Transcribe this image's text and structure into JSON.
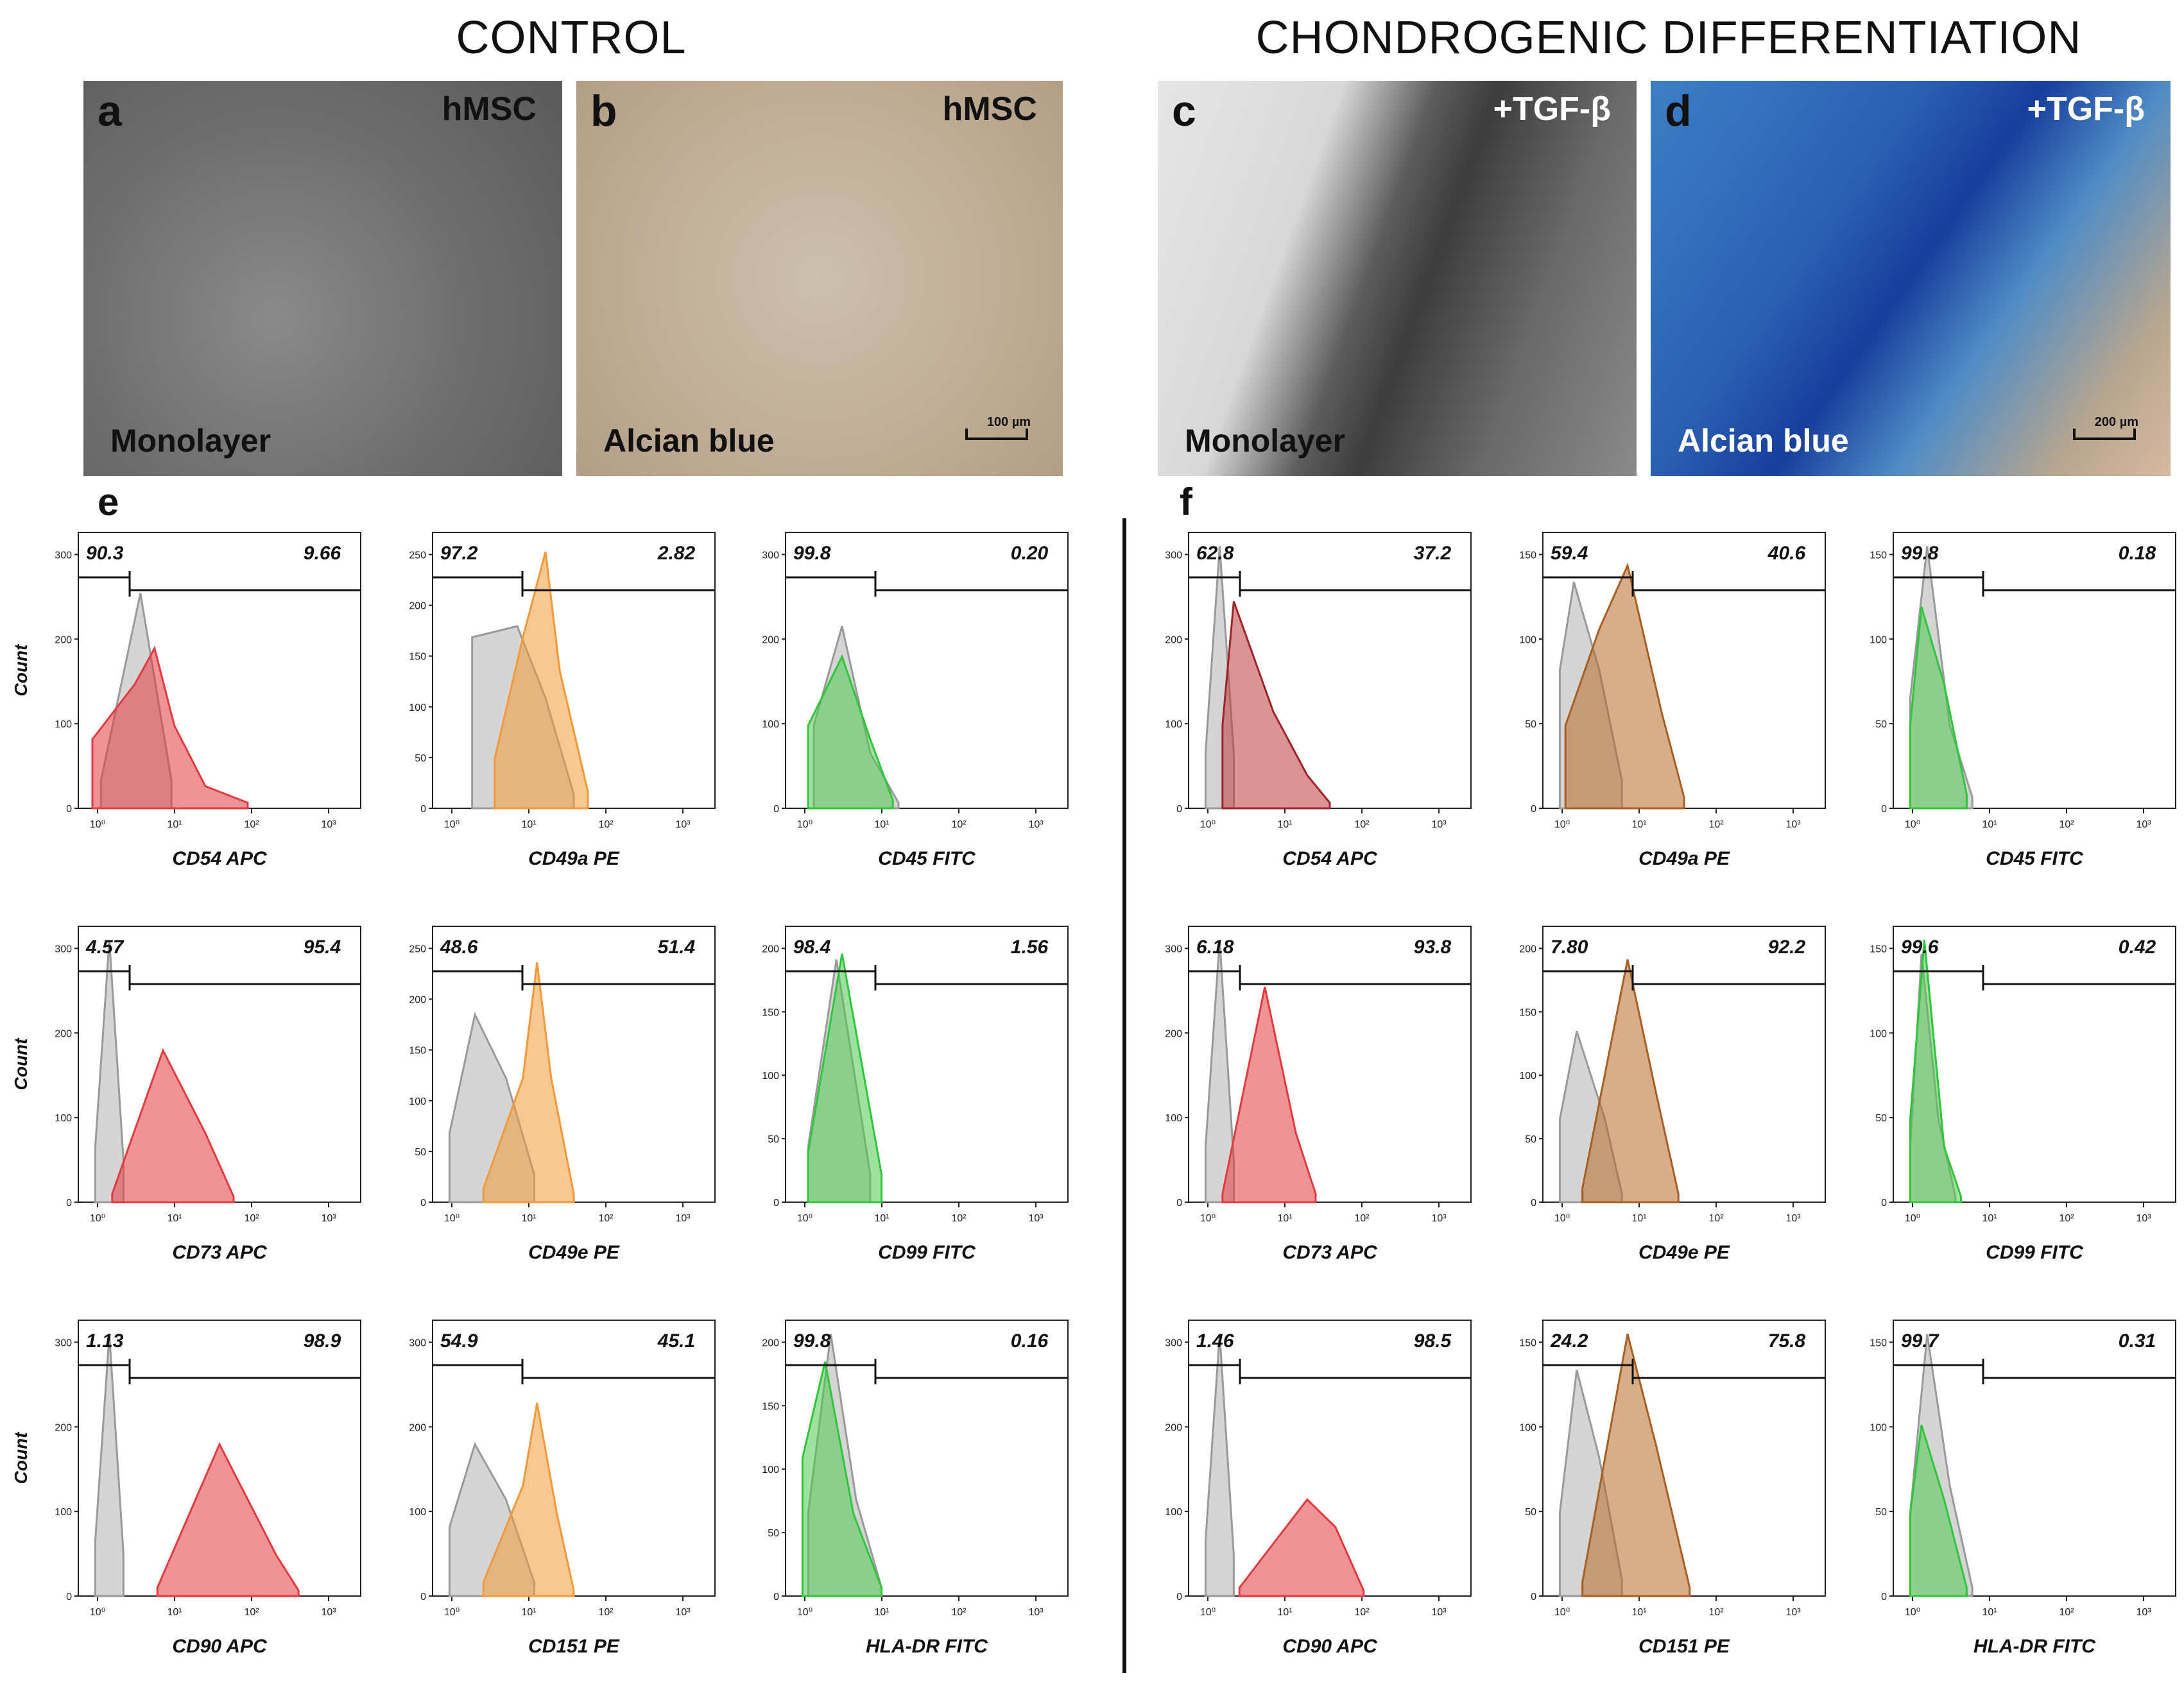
{
  "headings": {
    "control": "CONTROL",
    "chondro": "CHONDROGENIC DIFFERENTIATION"
  },
  "micrographs": [
    {
      "letter": "a",
      "tag": "hMSC",
      "caption": "Monolayer",
      "scale": ""
    },
    {
      "letter": "b",
      "tag": "hMSC",
      "caption": "Alcian blue",
      "scale": "100 µm"
    },
    {
      "letter": "c",
      "tag": "+TGF-β",
      "caption": "Monolayer",
      "scale": ""
    },
    {
      "letter": "d",
      "tag": "+TGF-β",
      "caption": "Alcian blue",
      "scale": "200 µm"
    }
  ],
  "flow_letters": {
    "left": "e",
    "right": "f"
  },
  "y_axis_label": "Count",
  "colors": {
    "red": "#e43a3f",
    "orange": "#f29a3a",
    "green": "#2ec63a",
    "brown": "#b8692a",
    "gray": "#9a9a9a"
  },
  "chart_data": [
    {
      "panel": "e",
      "marker": "CD54 APC",
      "neg": "90.3",
      "pos": "9.66",
      "ymax": 300,
      "color": "orange_red"
    },
    {
      "panel": "e",
      "marker": "CD49a PE",
      "neg": "97.2",
      "pos": "2.82",
      "ymax": 250
    },
    {
      "panel": "e",
      "marker": "CD45 FITC",
      "neg": "99.8",
      "pos": "0.20",
      "ymax": 300
    },
    {
      "panel": "f",
      "marker": "CD54 APC",
      "neg": "62.8",
      "pos": "37.2",
      "ymax": 300
    },
    {
      "panel": "f",
      "marker": "CD49a PE",
      "neg": "59.4",
      "pos": "40.6",
      "ymax": 150
    },
    {
      "panel": "f",
      "marker": "CD45 FITC",
      "neg": "99.8",
      "pos": "0.18",
      "ymax": 150
    },
    {
      "panel": "e",
      "marker": "CD73 APC",
      "neg": "4.57",
      "pos": "95.4",
      "ymax": 300
    },
    {
      "panel": "e",
      "marker": "CD49e PE",
      "neg": "48.6",
      "pos": "51.4",
      "ymax": 250
    },
    {
      "panel": "e",
      "marker": "CD99 FITC",
      "neg": "98.4",
      "pos": "1.56",
      "ymax": 200
    },
    {
      "panel": "f",
      "marker": "CD73 APC",
      "neg": "6.18",
      "pos": "93.8",
      "ymax": 300
    },
    {
      "panel": "f",
      "marker": "CD49e PE",
      "neg": "7.80",
      "pos": "92.2",
      "ymax": 200
    },
    {
      "panel": "f",
      "marker": "CD99 FITC",
      "neg": "99.6",
      "pos": "0.42",
      "ymax": 150
    },
    {
      "panel": "e",
      "marker": "CD90 APC",
      "neg": "1.13",
      "pos": "98.9",
      "ymax": 300
    },
    {
      "panel": "e",
      "marker": "CD151 PE",
      "neg": "54.9",
      "pos": "45.1",
      "ymax": 300
    },
    {
      "panel": "e",
      "marker": "HLA-DR FITC",
      "neg": "99.8",
      "pos": "0.16",
      "ymax": 200
    },
    {
      "panel": "f",
      "marker": "CD90 APC",
      "neg": "1.46",
      "pos": "98.5",
      "ymax": 300
    },
    {
      "panel": "f",
      "marker": "CD151 PE",
      "neg": "24.2",
      "pos": "75.8",
      "ymax": 150
    },
    {
      "panel": "f",
      "marker": "HLA-DR FITC",
      "neg": "99.7",
      "pos": "0.31",
      "ymax": 150
    }
  ],
  "curves": [
    {
      "gray": [
        [
          0.08,
          0.1
        ],
        [
          0.22,
          0.78
        ],
        [
          0.33,
          0.1
        ]
      ],
      "stain": [
        [
          0.05,
          0.25
        ],
        [
          0.2,
          0.45
        ],
        [
          0.27,
          0.58
        ],
        [
          0.34,
          0.3
        ],
        [
          0.45,
          0.08
        ],
        [
          0.6,
          0.02
        ]
      ],
      "c": "red"
    },
    {
      "gray": [
        [
          0.14,
          0.62
        ],
        [
          0.3,
          0.66
        ],
        [
          0.4,
          0.4
        ],
        [
          0.5,
          0.05
        ]
      ],
      "stain": [
        [
          0.22,
          0.18
        ],
        [
          0.32,
          0.62
        ],
        [
          0.4,
          0.93
        ],
        [
          0.45,
          0.5
        ],
        [
          0.55,
          0.06
        ]
      ],
      "c": "orange"
    },
    {
      "gray": [
        [
          0.1,
          0.3
        ],
        [
          0.2,
          0.66
        ],
        [
          0.3,
          0.2
        ],
        [
          0.4,
          0.02
        ]
      ],
      "stain": [
        [
          0.08,
          0.3
        ],
        [
          0.2,
          0.55
        ],
        [
          0.3,
          0.25
        ],
        [
          0.38,
          0.03
        ]
      ],
      "c": "green"
    },
    {
      "gray": [
        [
          0.06,
          0.2
        ],
        [
          0.11,
          0.95
        ],
        [
          0.16,
          0.2
        ]
      ],
      "stain": [
        [
          0.12,
          0.3
        ],
        [
          0.16,
          0.75
        ],
        [
          0.3,
          0.35
        ],
        [
          0.42,
          0.12
        ],
        [
          0.5,
          0.02
        ]
      ],
      "c": "darkred"
    },
    {
      "gray": [
        [
          0.06,
          0.5
        ],
        [
          0.11,
          0.82
        ],
        [
          0.2,
          0.5
        ],
        [
          0.28,
          0.1
        ]
      ],
      "stain": [
        [
          0.08,
          0.3
        ],
        [
          0.2,
          0.65
        ],
        [
          0.3,
          0.88
        ],
        [
          0.42,
          0.35
        ],
        [
          0.5,
          0.04
        ]
      ],
      "c": "brown"
    },
    {
      "gray": [
        [
          0.06,
          0.4
        ],
        [
          0.12,
          0.95
        ],
        [
          0.2,
          0.3
        ],
        [
          0.28,
          0.04
        ]
      ],
      "stain": [
        [
          0.06,
          0.3
        ],
        [
          0.1,
          0.73
        ],
        [
          0.18,
          0.45
        ],
        [
          0.26,
          0.05
        ]
      ],
      "c": "green"
    },
    {
      "gray": [
        [
          0.06,
          0.2
        ],
        [
          0.11,
          0.95
        ],
        [
          0.16,
          0.15
        ]
      ],
      "stain": [
        [
          0.12,
          0.03
        ],
        [
          0.3,
          0.55
        ],
        [
          0.45,
          0.25
        ],
        [
          0.55,
          0.02
        ]
      ],
      "c": "red"
    },
    {
      "gray": [
        [
          0.06,
          0.25
        ],
        [
          0.15,
          0.68
        ],
        [
          0.26,
          0.45
        ],
        [
          0.36,
          0.1
        ]
      ],
      "stain": [
        [
          0.18,
          0.05
        ],
        [
          0.32,
          0.45
        ],
        [
          0.37,
          0.87
        ],
        [
          0.42,
          0.45
        ],
        [
          0.5,
          0.03
        ]
      ],
      "c": "orange"
    },
    {
      "gray": [
        [
          0.08,
          0.2
        ],
        [
          0.18,
          0.88
        ],
        [
          0.3,
          0.1
        ]
      ],
      "stain": [
        [
          0.08,
          0.18
        ],
        [
          0.2,
          0.9
        ],
        [
          0.34,
          0.1
        ]
      ],
      "c": "green"
    },
    {
      "gray": [
        [
          0.06,
          0.2
        ],
        [
          0.11,
          0.95
        ],
        [
          0.16,
          0.15
        ]
      ],
      "stain": [
        [
          0.12,
          0.03
        ],
        [
          0.27,
          0.78
        ],
        [
          0.38,
          0.25
        ],
        [
          0.45,
          0.03
        ]
      ],
      "c": "red"
    },
    {
      "gray": [
        [
          0.06,
          0.3
        ],
        [
          0.12,
          0.62
        ],
        [
          0.22,
          0.3
        ],
        [
          0.28,
          0.03
        ]
      ],
      "stain": [
        [
          0.14,
          0.05
        ],
        [
          0.3,
          0.88
        ],
        [
          0.4,
          0.4
        ],
        [
          0.48,
          0.03
        ]
      ],
      "c": "brown"
    },
    {
      "gray": [
        [
          0.06,
          0.2
        ],
        [
          0.1,
          0.9
        ],
        [
          0.16,
          0.3
        ],
        [
          0.22,
          0.02
        ]
      ],
      "stain": [
        [
          0.06,
          0.3
        ],
        [
          0.11,
          0.95
        ],
        [
          0.18,
          0.2
        ],
        [
          0.24,
          0.02
        ]
      ],
      "c": "green"
    },
    {
      "gray": [
        [
          0.06,
          0.2
        ],
        [
          0.11,
          0.95
        ],
        [
          0.16,
          0.15
        ]
      ],
      "stain": [
        [
          0.28,
          0.03
        ],
        [
          0.5,
          0.55
        ],
        [
          0.7,
          0.15
        ],
        [
          0.78,
          0.02
        ]
      ],
      "c": "red"
    },
    {
      "gray": [
        [
          0.06,
          0.25
        ],
        [
          0.15,
          0.55
        ],
        [
          0.26,
          0.35
        ],
        [
          0.36,
          0.05
        ]
      ],
      "stain": [
        [
          0.18,
          0.05
        ],
        [
          0.32,
          0.4
        ],
        [
          0.37,
          0.7
        ],
        [
          0.44,
          0.3
        ],
        [
          0.5,
          0.02
        ]
      ],
      "c": "orange"
    },
    {
      "gray": [
        [
          0.08,
          0.3
        ],
        [
          0.16,
          0.95
        ],
        [
          0.25,
          0.35
        ],
        [
          0.34,
          0.03
        ]
      ],
      "stain": [
        [
          0.06,
          0.5
        ],
        [
          0.14,
          0.85
        ],
        [
          0.24,
          0.3
        ],
        [
          0.34,
          0.03
        ]
      ],
      "c": "green"
    },
    {
      "gray": [
        [
          0.06,
          0.2
        ],
        [
          0.11,
          0.95
        ],
        [
          0.16,
          0.15
        ]
      ],
      "stain": [
        [
          0.18,
          0.03
        ],
        [
          0.42,
          0.35
        ],
        [
          0.52,
          0.25
        ],
        [
          0.62,
          0.02
        ]
      ],
      "c": "red"
    },
    {
      "gray": [
        [
          0.06,
          0.3
        ],
        [
          0.12,
          0.82
        ],
        [
          0.2,
          0.5
        ],
        [
          0.28,
          0.06
        ]
      ],
      "stain": [
        [
          0.14,
          0.05
        ],
        [
          0.3,
          0.95
        ],
        [
          0.4,
          0.55
        ],
        [
          0.52,
          0.03
        ]
      ],
      "c": "brown"
    },
    {
      "gray": [
        [
          0.06,
          0.3
        ],
        [
          0.12,
          0.95
        ],
        [
          0.2,
          0.4
        ],
        [
          0.28,
          0.03
        ]
      ],
      "stain": [
        [
          0.06,
          0.3
        ],
        [
          0.1,
          0.62
        ],
        [
          0.18,
          0.35
        ],
        [
          0.26,
          0.03
        ]
      ],
      "c": "green"
    }
  ]
}
